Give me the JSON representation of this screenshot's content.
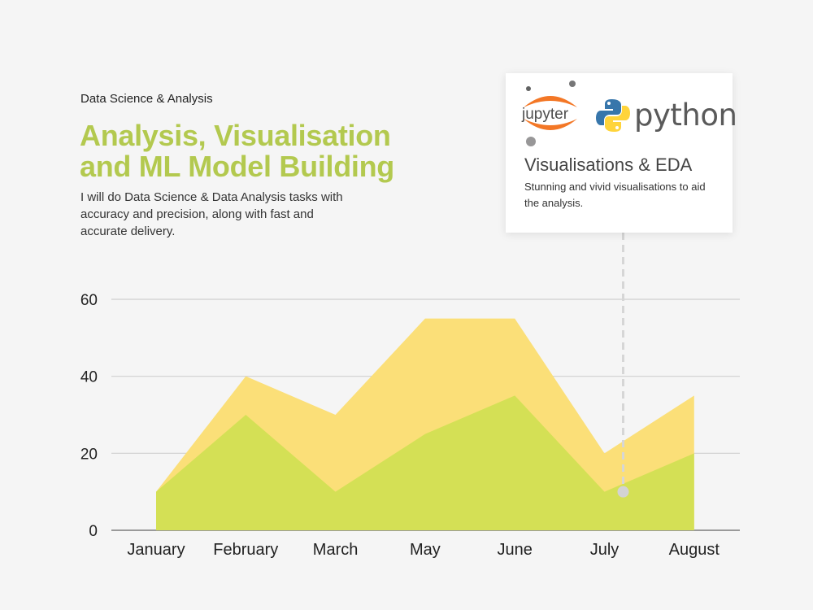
{
  "header": {
    "eyebrow": "Data Science & Analysis",
    "title_line1": "Analysis, Visualisation",
    "title_line2": "and ML Model Building",
    "description": "I will do Data Science & Data Analysis tasks with accuracy and precision, along with fast and accurate delivery."
  },
  "card": {
    "jupyter_label": "jupyter",
    "python_label": "python",
    "title": "Visualisations & EDA",
    "text": "Stunning and vivid visualisations to aid the analysis."
  },
  "colors": {
    "title_green": "#b3c94f",
    "upper_area": "#fbdf78",
    "lower_area": "#d4e055",
    "jupyter_orange": "#f37726",
    "python_blue": "#3776ab",
    "python_yellow": "#ffd43b"
  },
  "chart_data": {
    "type": "area",
    "categories": [
      "January",
      "February",
      "March",
      "May",
      "June",
      "July",
      "August"
    ],
    "series": [
      {
        "values": [
          10,
          40,
          30,
          55,
          55,
          20,
          35
        ],
        "color": "#fbdf78"
      },
      {
        "values": [
          10,
          30,
          10,
          25,
          35,
          10,
          20
        ],
        "color": "#d4e055"
      }
    ],
    "yticks": [
      0,
      20,
      40,
      60
    ],
    "ylim": [
      0,
      60
    ],
    "grid": true,
    "stacked": false,
    "highlight": {
      "category": "July",
      "value": 10
    }
  }
}
